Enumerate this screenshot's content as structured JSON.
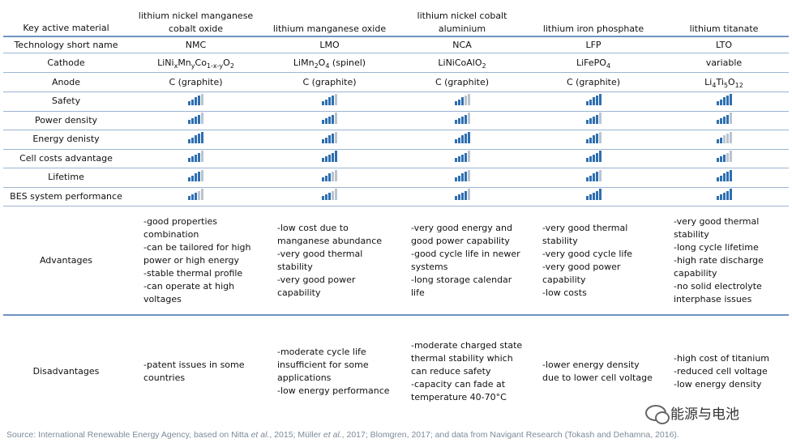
{
  "header": {
    "label": "Key active material",
    "materials": [
      "lithium nickel manganese cobalt oxide",
      "lithium manganese oxide",
      "lithium nickel cobalt aluminium",
      "lithium iron phosphate",
      "lithium titanate"
    ]
  },
  "short_names": {
    "label": "Technology short name",
    "values": [
      "NMC",
      "LMO",
      "NCA",
      "LFP",
      "LTO"
    ]
  },
  "cathode": {
    "label": "Cathode",
    "values": [
      [
        "LiNi",
        "x",
        "Mn",
        "y",
        "Co",
        "1-x-y",
        "O",
        "2"
      ],
      [
        "LiMn",
        "2",
        "O",
        "4",
        " (spinel)"
      ],
      [
        "LiNiCoAlO",
        "2"
      ],
      [
        "LiFePO",
        "4"
      ],
      [
        "variable"
      ]
    ]
  },
  "anode": {
    "label": "Anode",
    "values": [
      [
        "C (graphite)"
      ],
      [
        "C (graphite)"
      ],
      [
        "C (graphite)"
      ],
      [
        "C (graphite)"
      ],
      [
        "Li",
        "4",
        "Ti",
        "5",
        "O",
        "12"
      ]
    ]
  },
  "ratings": [
    {
      "label": "Safety",
      "values": [
        4,
        4,
        3,
        5,
        5
      ]
    },
    {
      "label": "Power density",
      "values": [
        4,
        4,
        4,
        4,
        4
      ]
    },
    {
      "label": "Energy denisty",
      "values": [
        5,
        4,
        5,
        4,
        2
      ]
    },
    {
      "label": "Cell costs advantage",
      "values": [
        4,
        5,
        4,
        5,
        3
      ]
    },
    {
      "label": "Lifetime",
      "values": [
        4,
        3,
        4,
        4,
        5
      ]
    },
    {
      "label": "BES system performance",
      "values": [
        3,
        3,
        4,
        5,
        5
      ]
    }
  ],
  "rating_max": 5,
  "rating_colors": {
    "on": "#2e6fb1",
    "off": "#b9c4cf"
  },
  "advantages": {
    "label": "Advantages",
    "values": [
      [
        "-good properties combination",
        "-can be tailored for high power or high energy",
        "-stable thermal profile",
        "-can operate at high voltages"
      ],
      [
        "-low cost due to manganese abundance",
        "-very good thermal stability",
        "-very good power capability"
      ],
      [
        "-very good energy and good power capability",
        "-good cycle life in newer systems",
        "-long storage calendar life"
      ],
      [
        "-very good thermal stability",
        "-very good cycle life",
        "-very good power capability",
        "-low costs"
      ],
      [
        "-very good thermal stability",
        "-long cycle lifetime",
        "-high rate discharge capability",
        "-no solid electrolyte interphase issues"
      ]
    ]
  },
  "disadvantages": {
    "label": "Disadvantages",
    "values": [
      [
        "-patent issues in some countries"
      ],
      [
        "-moderate cycle life insufficient for some applications",
        "-low energy performance"
      ],
      [
        "-moderate charged state thermal stability which can reduce safety",
        "-capacity can fade at temperature 40-70°C"
      ],
      [
        "-lower energy density due to lower cell voltage"
      ],
      [
        "-high cost of titanium",
        "-reduced cell voltage",
        "-low energy density"
      ]
    ]
  },
  "source_parts": [
    {
      "t": "Source: International Renewable Energy Agency, based on Nitta ",
      "i": false
    },
    {
      "t": "et al.",
      "i": true
    },
    {
      "t": ", 2015; Müller ",
      "i": false
    },
    {
      "t": "et al.",
      "i": true
    },
    {
      "t": ", 2017; Blomgren, 2017; and data from Navigant Research (Tokash and Dehamna, 2016).",
      "i": false
    }
  ],
  "watermark": {
    "icon": "wechat-icon",
    "text": "能源与电池"
  }
}
